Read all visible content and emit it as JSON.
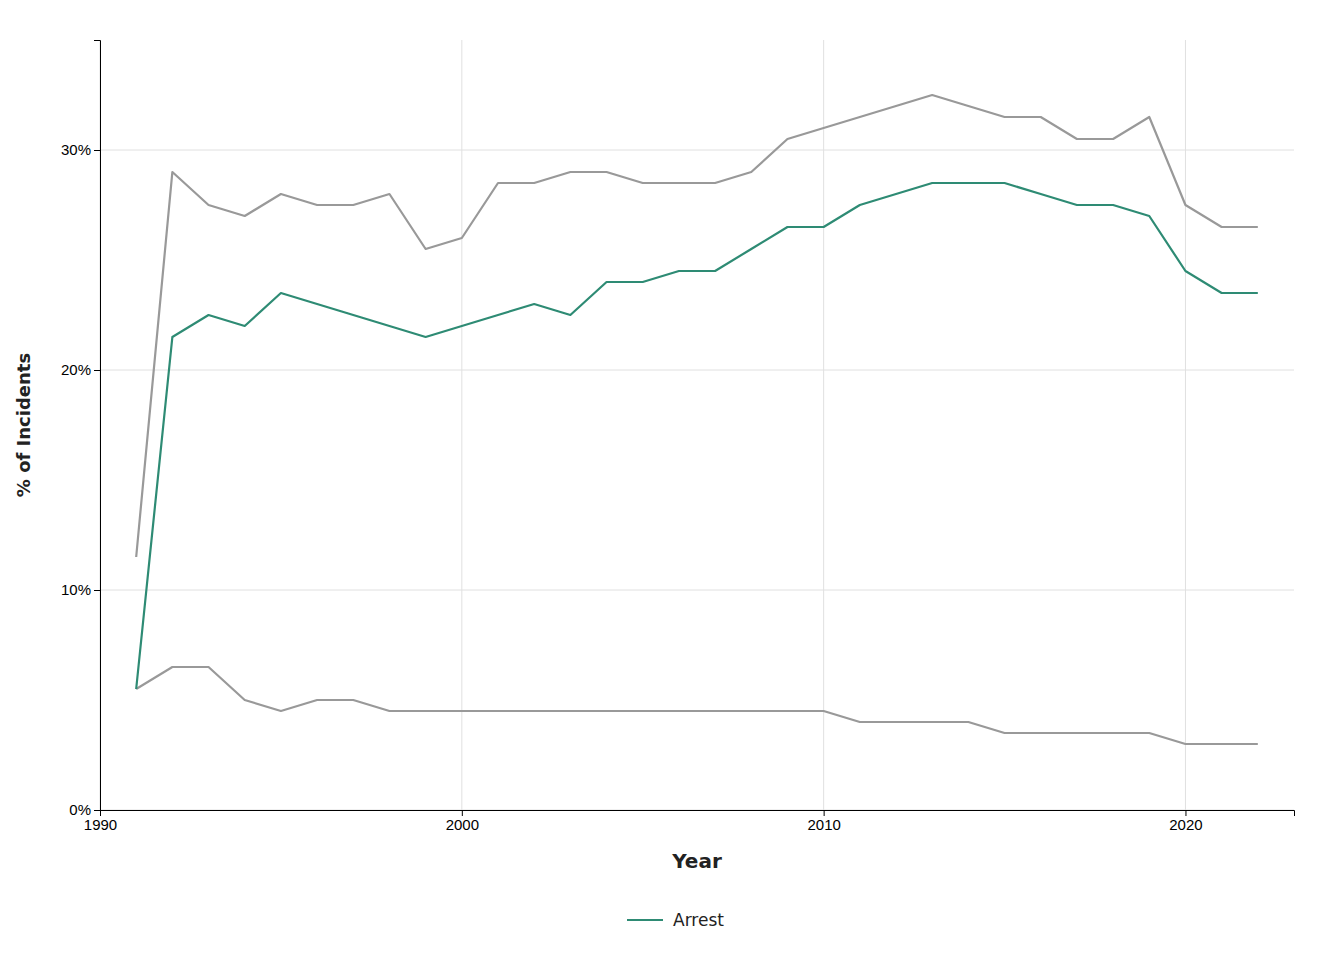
{
  "chart_data": {
    "type": "line",
    "xlabel": "Year",
    "ylabel": "% of Incidents",
    "x": [
      1991,
      1992,
      1993,
      1994,
      1995,
      1996,
      1997,
      1998,
      1999,
      2000,
      2001,
      2002,
      2003,
      2004,
      2005,
      2006,
      2007,
      2008,
      2009,
      2010,
      2011,
      2012,
      2013,
      2014,
      2015,
      2016,
      2017,
      2018,
      2019,
      2020,
      2021,
      2022
    ],
    "series": [
      {
        "color": "#999999",
        "values": [
          11.5,
          29.0,
          27.5,
          27.0,
          28.0,
          27.5,
          27.5,
          28.0,
          25.5,
          26.0,
          28.5,
          28.5,
          29.0,
          29.0,
          28.5,
          28.5,
          28.5,
          29.0,
          30.5,
          31.0,
          31.5,
          32.0,
          32.5,
          32.0,
          31.5,
          31.5,
          30.5,
          30.5,
          31.5,
          27.5,
          26.5,
          26.5
        ]
      },
      {
        "color": "#999999",
        "values": [
          5.5,
          6.5,
          6.5,
          5.0,
          4.5,
          5.0,
          5.0,
          4.5,
          4.5,
          4.5,
          4.5,
          4.5,
          4.5,
          4.5,
          4.5,
          4.5,
          4.5,
          4.5,
          4.5,
          4.5,
          4.0,
          4.0,
          4.0,
          4.0,
          3.5,
          3.5,
          3.5,
          3.5,
          3.5,
          3.0,
          3.0,
          3.0
        ]
      },
      {
        "name": "Arrest",
        "color": "#2e8b74",
        "values": [
          5.5,
          21.5,
          22.5,
          22.0,
          23.5,
          23.0,
          22.5,
          22.0,
          21.5,
          22.0,
          22.5,
          23.0,
          22.5,
          24.0,
          24.0,
          24.5,
          24.5,
          25.5,
          26.5,
          26.5,
          27.5,
          28.0,
          28.5,
          28.5,
          28.5,
          28.0,
          27.5,
          27.5,
          27.0,
          24.5,
          23.5,
          23.5
        ]
      }
    ],
    "xlim": [
      1990,
      2023
    ],
    "xticks": [
      1990,
      2000,
      2010,
      2020
    ],
    "ylim": [
      0,
      35
    ],
    "yticks": [
      {
        "value": 0,
        "label": "0%"
      },
      {
        "value": 10,
        "label": "10%"
      },
      {
        "value": 20,
        "label": "20%"
      },
      {
        "value": 30,
        "label": "30%"
      }
    ],
    "grid": true,
    "legend": "bottom"
  }
}
